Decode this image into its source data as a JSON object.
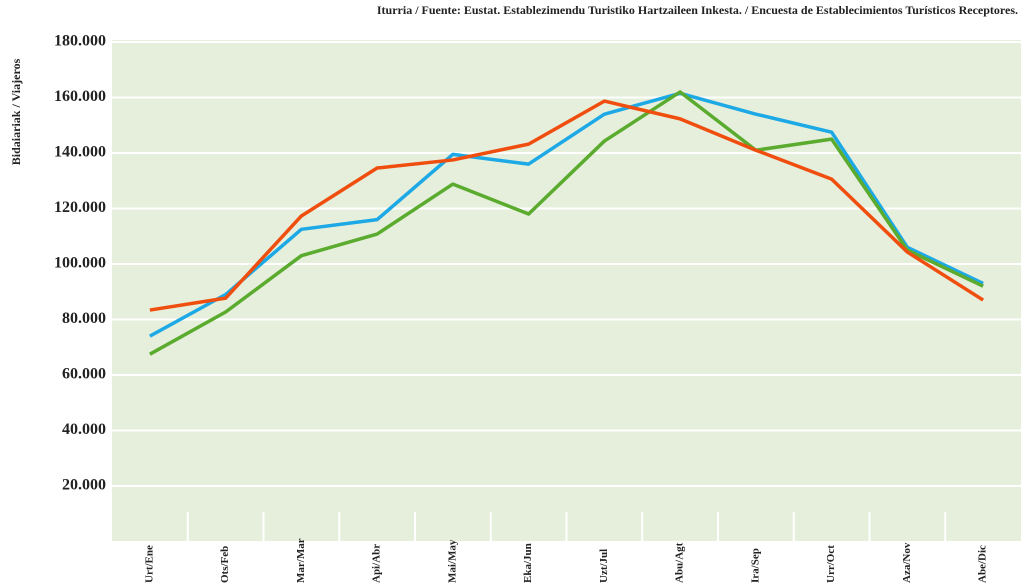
{
  "chart_data": {
    "type": "line",
    "source": "Iturria / Fuente: Eustat. Establezimendu Turistiko Hartzaileen Inkesta. / Encuesta de Establecimientos Turísticos Receptores.",
    "y_label": "Bidaiariak / Viajeros",
    "categories": [
      "Urt/Ene",
      "Ots/Feb",
      "Mar/Mar",
      "Api/Abr",
      "Mai/May",
      "Eka/Jun",
      "Uzt/Jul",
      "Abu/Agt",
      "Ira/Sep",
      "Urr/Oct",
      "Aza/Nov",
      "Abe/Dic"
    ],
    "series": [
      {
        "color": "#1ca9e6",
        "values": [
          74000,
          89000,
          112500,
          116000,
          139500,
          136000,
          154000,
          161500,
          154000,
          147500,
          106000,
          93000
        ]
      },
      {
        "color": "#5aab2e",
        "values": [
          67500,
          82700,
          103000,
          110800,
          128800,
          118000,
          144300,
          162000,
          141000,
          145000,
          105000,
          92000
        ]
      },
      {
        "color": "#f04e0e",
        "values": [
          83400,
          87700,
          117300,
          134600,
          137500,
          143200,
          158700,
          152300,
          141000,
          130600,
          104300,
          87000
        ]
      }
    ],
    "ylim": [
      0,
      180000
    ],
    "yticks": [
      {
        "value": 20000,
        "label": "20.000"
      },
      {
        "value": 40000,
        "label": "40.000"
      },
      {
        "value": 60000,
        "label": "60.000"
      },
      {
        "value": 80000,
        "label": "80.000"
      },
      {
        "value": 100000,
        "label": "100.000"
      },
      {
        "value": 120000,
        "label": "120.000"
      },
      {
        "value": 140000,
        "label": "140.000"
      },
      {
        "value": 160000,
        "label": "160.000"
      },
      {
        "value": 180000,
        "label": "180.000"
      }
    ],
    "grid": true
  }
}
